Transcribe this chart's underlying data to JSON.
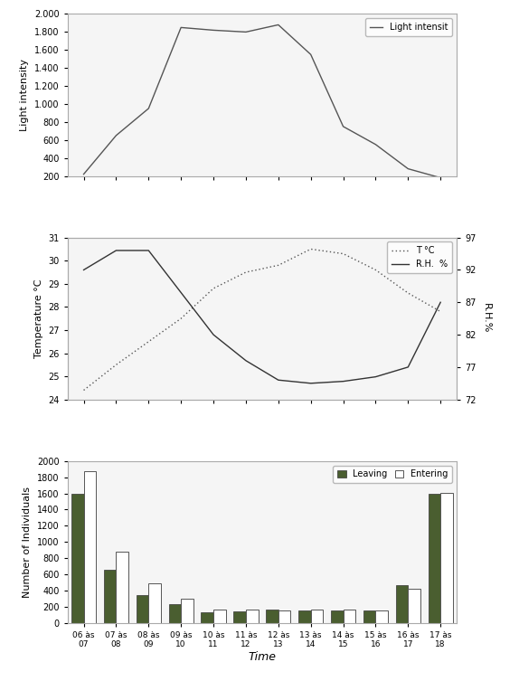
{
  "time_labels": [
    "06 às\n07",
    "07 às\n08",
    "08 às\n09",
    "09 às\n10",
    "10 às\n11",
    "11 às\n12",
    "12 às\n13",
    "13 às\n14",
    "14 às\n15",
    "15 às\n16",
    "16 às\n17",
    "17 às\n18"
  ],
  "light_intensity": [
    220,
    650,
    950,
    1850,
    1820,
    1800,
    1880,
    1550,
    750,
    550,
    280,
    180
  ],
  "light_ylim": [
    200,
    2000
  ],
  "light_yticks": [
    200,
    400,
    600,
    800,
    1000,
    1200,
    1400,
    1600,
    1800,
    2000
  ],
  "light_ylabel": "Light intensity",
  "light_legend": "Light intensit",
  "temperature": [
    24.4,
    25.5,
    26.5,
    27.5,
    28.8,
    29.5,
    29.8,
    30.5,
    30.3,
    29.6,
    28.6,
    27.8
  ],
  "temp_ylim": [
    24,
    31
  ],
  "temp_yticks": [
    24,
    25,
    26,
    27,
    28,
    29,
    30,
    31
  ],
  "temp_ylabel": "Temperature °C",
  "rh": [
    92,
    95,
    95,
    88.5,
    82,
    78,
    75,
    74.5,
    74.8,
    75.5,
    77,
    87
  ],
  "rh_ylim": [
    72,
    97
  ],
  "rh_yticks": [
    72,
    77,
    82,
    87,
    92,
    97
  ],
  "rh_ylabel": "R.H.%",
  "leaving": [
    1600,
    660,
    340,
    230,
    130,
    145,
    165,
    155,
    160,
    155,
    470,
    1600
  ],
  "entering": [
    1880,
    880,
    490,
    295,
    163,
    165,
    160,
    168,
    165,
    158,
    420,
    1610
  ],
  "bar_ylim": [
    0,
    2000
  ],
  "bar_yticks": [
    0,
    200,
    400,
    600,
    800,
    1000,
    1200,
    1400,
    1600,
    1800,
    2000
  ],
  "bar_ylabel": "Number of Individuals",
  "xlabel": "Time",
  "leaving_color": "#4a5e30",
  "entering_color": "#ffffff",
  "leaving_label": "Leaving",
  "entering_label": "Entering",
  "panel_bg": "#f5f5f5",
  "line_color": "#555555"
}
